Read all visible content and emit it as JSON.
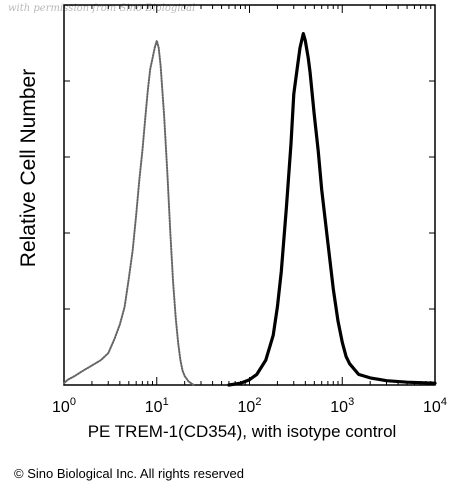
{
  "watermark": "with permission from Sino Biological",
  "copyright": "© Sino Biological Inc. All rights reserved",
  "chart_data": {
    "type": "area",
    "title": "",
    "xlabel": "PE TREM-1(CD354), with isotype control",
    "ylabel": "Relative Cell Number",
    "x_scale": "log",
    "xlim": [
      1,
      10000
    ],
    "ylim": [
      0,
      100
    ],
    "x_ticks": [
      {
        "value": 1,
        "base": "10",
        "exp": "0"
      },
      {
        "value": 10,
        "base": "10",
        "exp": "1"
      },
      {
        "value": 100,
        "base": "10",
        "exp": "2"
      },
      {
        "value": 1000,
        "base": "10",
        "exp": "3"
      },
      {
        "value": 10000,
        "base": "10",
        "exp": "4"
      }
    ],
    "grid": false,
    "legend": "none",
    "series": [
      {
        "style": "dotted",
        "color": "#666666",
        "x": [
          1,
          1.1,
          1.3,
          1.6,
          2,
          2.5,
          3,
          3.5,
          4,
          4.5,
          5,
          5.5,
          6,
          6.5,
          7,
          7.5,
          8,
          8.5,
          9,
          9.5,
          10,
          10.5,
          11,
          12,
          13,
          14,
          15,
          16,
          17,
          18,
          19,
          20,
          22,
          25
        ],
        "y": [
          0.5,
          1.5,
          2.5,
          4,
          5.5,
          7,
          9,
          13,
          17,
          22,
          30,
          38,
          48,
          58,
          66,
          75,
          83,
          89,
          92,
          95,
          97,
          95,
          90,
          76,
          60,
          43,
          29,
          19,
          12,
          7,
          4,
          2.5,
          1,
          0
        ]
      },
      {
        "style": "solid",
        "color": "#000000",
        "x": [
          60,
          80,
          100,
          120,
          150,
          180,
          200,
          220,
          250,
          280,
          300,
          330,
          350,
          380,
          400,
          430,
          450,
          500,
          550,
          600,
          700,
          800,
          900,
          1000,
          1100,
          1200,
          1500,
          2000,
          3000,
          5000,
          10000
        ],
        "y": [
          0,
          0.5,
          1.5,
          3,
          7,
          14,
          22,
          32,
          50,
          68,
          82,
          90,
          95,
          99,
          97,
          92,
          88,
          76,
          66,
          55,
          40,
          27,
          18,
          12,
          8,
          6,
          3,
          2,
          1.2,
          0.8,
          0.5
        ]
      }
    ]
  }
}
